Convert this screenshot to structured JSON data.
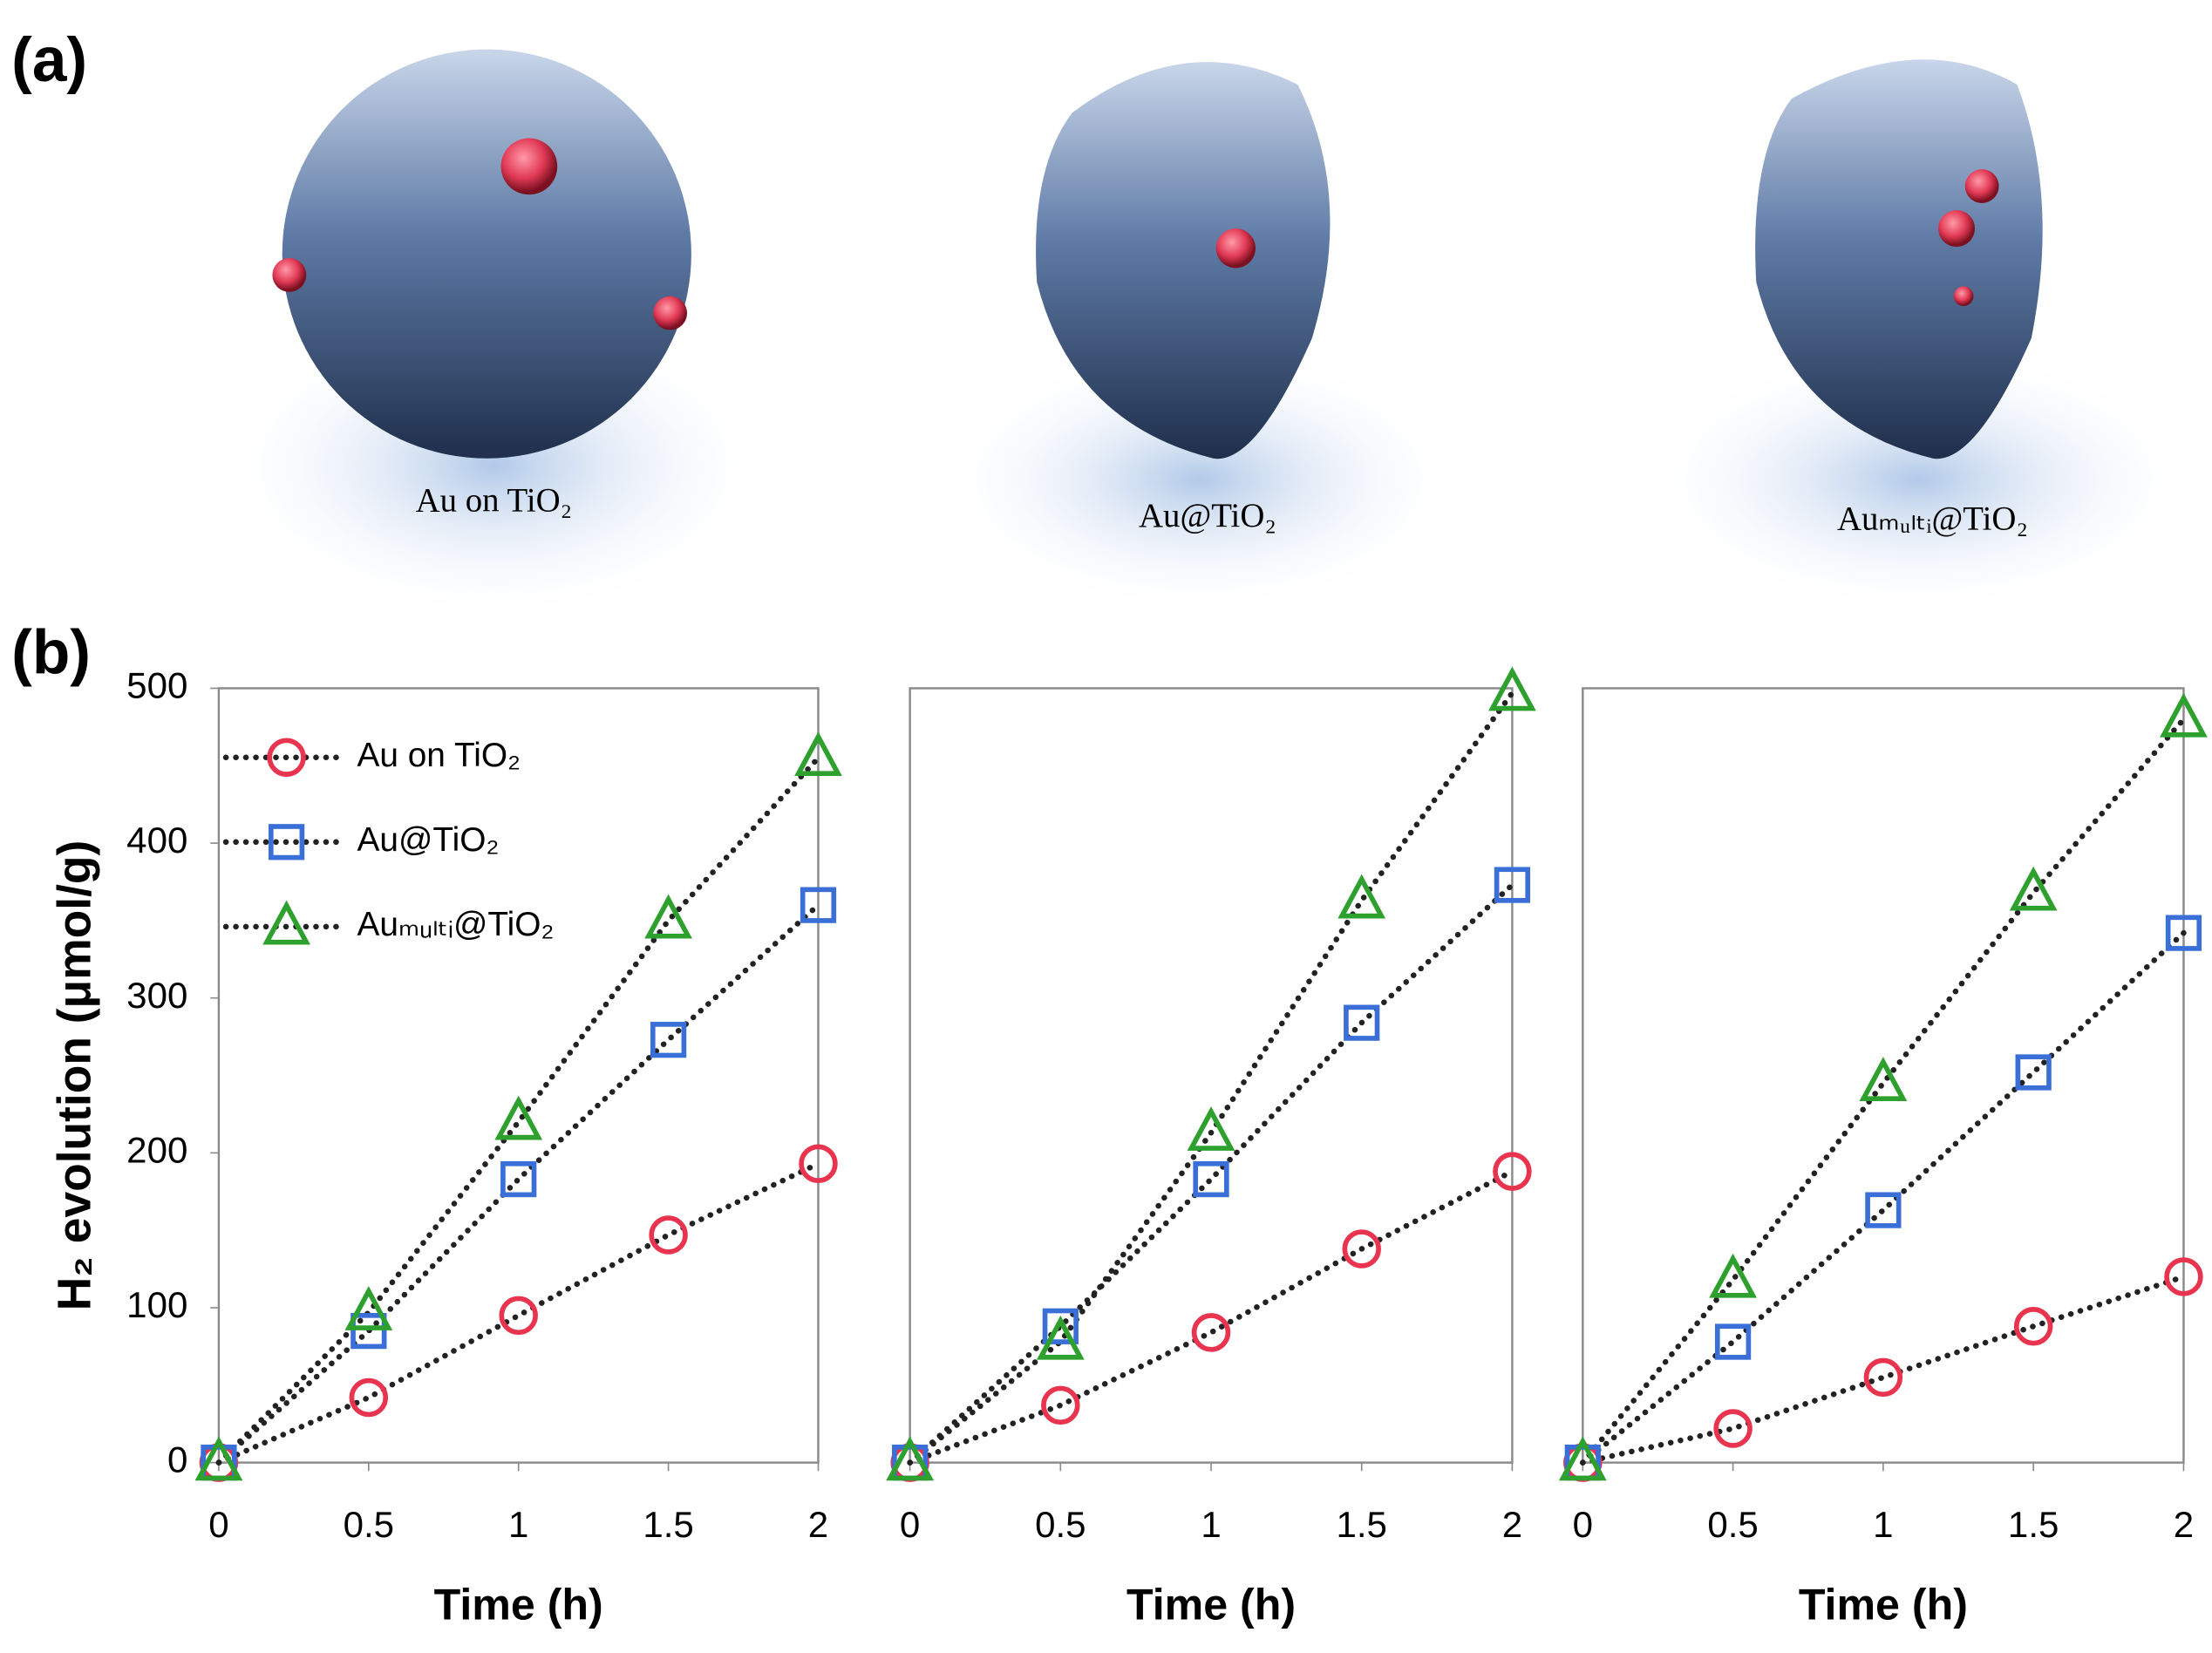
{
  "panel_labels": [
    "(a)",
    "(b)"
  ],
  "illustrations": [
    {
      "label": "Au on TiO₂"
    },
    {
      "label": "Au@TiO₂"
    },
    {
      "label": "Auₘᵤₗₜᵢ@TiO₂"
    }
  ],
  "chart_data": [
    {
      "type": "line",
      "x": [
        0,
        0.5,
        1,
        1.5,
        2
      ],
      "xlim": [
        0,
        2
      ],
      "xticks": [
        0,
        0.5,
        1,
        1.5,
        2
      ],
      "ylim": [
        0,
        500
      ],
      "yticks": [
        0,
        100,
        200,
        300,
        400,
        500
      ],
      "x_label": "Time (h)",
      "y_label": "H₂ evolution  (μmol/g)",
      "legend": "top-left",
      "series": [
        {
          "name": "Au on TiO₂",
          "color": "#e8344e",
          "marker": "circle",
          "values": [
            0,
            42,
            95,
            147,
            193
          ]
        },
        {
          "name": "Au@TiO₂",
          "color": "#3a6fd8",
          "marker": "square",
          "values": [
            0,
            85,
            183,
            273,
            360
          ]
        },
        {
          "name": "Auₘᵤₗₜᵢ@TiO₂",
          "color": "#2ea02e",
          "marker": "triangle",
          "values": [
            0,
            97,
            220,
            350,
            455
          ]
        }
      ]
    },
    {
      "type": "line",
      "x": [
        0,
        0.5,
        1,
        1.5,
        2
      ],
      "xlim": [
        0,
        2
      ],
      "xticks": [
        0,
        0.5,
        1,
        1.5,
        2
      ],
      "ylim": [
        0,
        500
      ],
      "x_label": "Time (h)",
      "series": [
        {
          "color": "#e8344e",
          "marker": "circle",
          "values": [
            0,
            37,
            84,
            138,
            188
          ]
        },
        {
          "color": "#3a6fd8",
          "marker": "square",
          "values": [
            0,
            88,
            183,
            284,
            373
          ]
        },
        {
          "color": "#2ea02e",
          "marker": "triangle",
          "values": [
            0,
            78,
            213,
            363,
            497
          ]
        }
      ]
    },
    {
      "type": "line",
      "x": [
        0,
        0.5,
        1,
        1.5,
        2
      ],
      "xlim": [
        0,
        2
      ],
      "xticks": [
        0,
        0.5,
        1,
        1.5,
        2
      ],
      "ylim": [
        0,
        500
      ],
      "x_label": "Time (h)",
      "series": [
        {
          "color": "#e8344e",
          "marker": "circle",
          "values": [
            0,
            22,
            55,
            88,
            120
          ]
        },
        {
          "color": "#3a6fd8",
          "marker": "square",
          "values": [
            0,
            78,
            163,
            252,
            342
          ]
        },
        {
          "color": "#2ea02e",
          "marker": "triangle",
          "values": [
            0,
            118,
            245,
            368,
            480
          ]
        }
      ]
    }
  ]
}
